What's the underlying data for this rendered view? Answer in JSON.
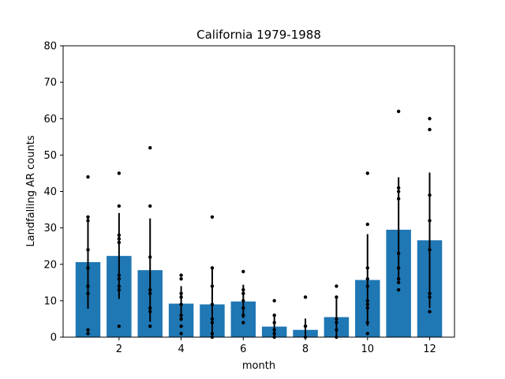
{
  "chart_data": {
    "type": "bar",
    "title": "California 1979-1988",
    "xlabel": "month",
    "ylabel": "Landfalling AR counts",
    "xlim": [
      0.2,
      12.8
    ],
    "ylim": [
      0,
      80
    ],
    "xticks": [
      2,
      4,
      6,
      8,
      10,
      12
    ],
    "yticks": [
      0,
      10,
      20,
      30,
      40,
      50,
      60,
      70,
      80
    ],
    "grid": false,
    "bar_color": "#1f77b4",
    "point_color": "#000000",
    "errorbar_color": "#000000",
    "series": [
      {
        "type": "bar",
        "x": [
          1,
          2,
          3,
          4,
          5,
          6,
          7,
          8,
          9,
          10,
          11,
          12
        ],
        "values": [
          20.6,
          22.3,
          18.4,
          9.2,
          9.0,
          9.8,
          2.9,
          2.0,
          5.5,
          15.7,
          29.5,
          26.6
        ],
        "error": [
          12.8,
          11.8,
          14.2,
          4.8,
          10.2,
          4.6,
          3.1,
          3.1,
          5.6,
          12.6,
          14.4,
          18.6
        ]
      },
      {
        "type": "scatter",
        "points": [
          [
            1,
            44
          ],
          [
            1,
            33
          ],
          [
            1,
            32
          ],
          [
            1,
            24
          ],
          [
            1,
            19
          ],
          [
            1,
            14
          ],
          [
            1,
            12
          ],
          [
            1,
            2
          ],
          [
            1,
            1
          ],
          [
            2,
            45
          ],
          [
            2,
            36
          ],
          [
            2,
            28
          ],
          [
            2,
            27
          ],
          [
            2,
            26
          ],
          [
            2,
            17
          ],
          [
            2,
            16
          ],
          [
            2,
            14
          ],
          [
            2,
            13
          ],
          [
            2,
            3
          ],
          [
            3,
            52
          ],
          [
            3,
            36
          ],
          [
            3,
            22
          ],
          [
            3,
            13
          ],
          [
            3,
            12
          ],
          [
            3,
            8
          ],
          [
            3,
            7
          ],
          [
            3,
            3
          ],
          [
            4,
            17
          ],
          [
            4,
            16
          ],
          [
            4,
            12
          ],
          [
            4,
            11
          ],
          [
            4,
            9
          ],
          [
            4,
            6
          ],
          [
            4,
            5
          ],
          [
            4,
            3
          ],
          [
            4,
            1
          ],
          [
            5,
            33
          ],
          [
            5,
            19
          ],
          [
            5,
            14
          ],
          [
            5,
            9
          ],
          [
            5,
            5
          ],
          [
            5,
            4
          ],
          [
            5,
            1
          ],
          [
            5,
            0
          ],
          [
            6,
            18
          ],
          [
            6,
            13
          ],
          [
            6,
            12
          ],
          [
            6,
            10
          ],
          [
            6,
            8
          ],
          [
            6,
            6
          ],
          [
            6,
            4
          ],
          [
            7,
            10
          ],
          [
            7,
            6
          ],
          [
            7,
            4
          ],
          [
            7,
            2
          ],
          [
            7,
            1
          ],
          [
            7,
            0
          ],
          [
            8,
            11
          ],
          [
            8,
            3
          ],
          [
            8,
            3
          ],
          [
            8,
            0
          ],
          [
            9,
            14
          ],
          [
            9,
            11
          ],
          [
            9,
            5
          ],
          [
            9,
            4
          ],
          [
            9,
            2
          ],
          [
            9,
            0
          ],
          [
            10,
            45
          ],
          [
            10,
            31
          ],
          [
            10,
            19
          ],
          [
            10,
            16
          ],
          [
            10,
            14
          ],
          [
            10,
            10
          ],
          [
            10,
            9
          ],
          [
            10,
            8
          ],
          [
            10,
            4
          ],
          [
            10,
            1
          ],
          [
            11,
            62
          ],
          [
            11,
            41
          ],
          [
            11,
            40
          ],
          [
            11,
            38
          ],
          [
            11,
            23
          ],
          [
            11,
            19
          ],
          [
            11,
            16
          ],
          [
            11,
            15
          ],
          [
            11,
            13
          ],
          [
            12,
            60
          ],
          [
            12,
            57
          ],
          [
            12,
            39
          ],
          [
            12,
            32
          ],
          [
            12,
            24
          ],
          [
            12,
            12
          ],
          [
            12,
            11
          ],
          [
            12,
            7
          ]
        ]
      }
    ]
  }
}
